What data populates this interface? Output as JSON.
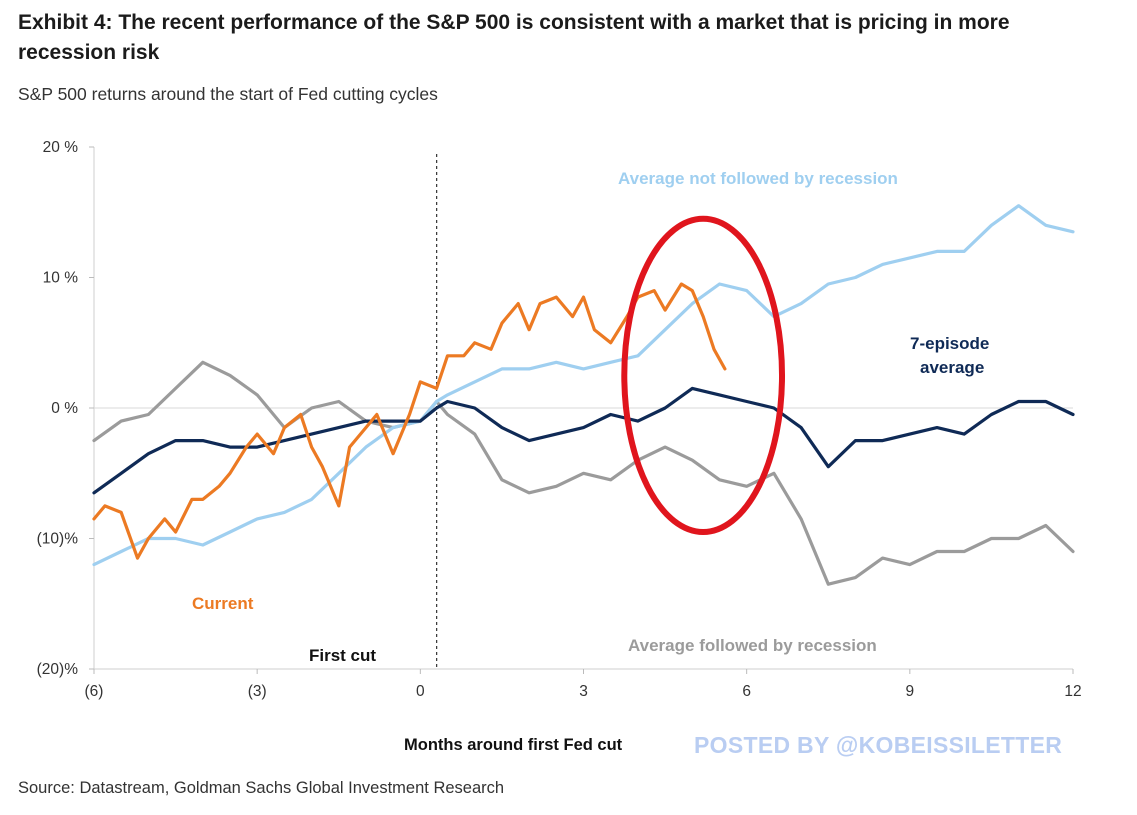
{
  "header": {
    "title": "Exhibit 4: The recent performance of the S&P 500 is consistent with a market that is pricing in more recession risk",
    "subtitle": "S&P 500 returns around the start of Fed cutting cycles"
  },
  "footer": {
    "source": "Source: Datastream, Goldman Sachs Global Investment Research",
    "watermark": "POSTED BY @KOBEISSILETTER"
  },
  "chart_data": {
    "type": "line",
    "title": "S&P 500 returns around the start of Fed cutting cycles",
    "xlabel": "Months  around first  Fed cut",
    "ylabel": "",
    "xlim": [
      -6,
      12
    ],
    "ylim": [
      -20,
      20
    ],
    "x_ticks": [
      -6,
      -3,
      0,
      3,
      6,
      9,
      12
    ],
    "x_tick_labels": [
      "(6)",
      "(3)",
      "0",
      "3",
      "6",
      "9",
      "12"
    ],
    "y_ticks": [
      20,
      10,
      0,
      -10,
      -20
    ],
    "y_tick_labels": [
      "20 %",
      "10 %",
      "0 %",
      "(10)%",
      "(20)%"
    ],
    "first_cut_x": 0.3,
    "first_cut_label": "First cut",
    "highlight": {
      "cx": 5.2,
      "cy": 2.5,
      "rx": 1.45,
      "ry": 12
    },
    "series": [
      {
        "name": "Average followed by recession",
        "color": "#9b9b9b",
        "x": [
          -6,
          -5.5,
          -5,
          -4.5,
          -4,
          -3.5,
          -3,
          -2.5,
          -2,
          -1.5,
          -1,
          -0.5,
          0,
          0.3,
          0.5,
          1,
          1.5,
          2,
          2.5,
          3,
          3.5,
          4,
          4.5,
          5,
          5.5,
          6,
          6.5,
          7,
          7.5,
          8,
          8.5,
          9,
          9.5,
          10,
          10.5,
          11,
          11.5,
          12
        ],
        "y": [
          -2.5,
          -1,
          -0.5,
          1.5,
          3.5,
          2.5,
          1,
          -1.5,
          0,
          0.5,
          -1,
          -1.5,
          -1,
          0.5,
          -0.5,
          -2,
          -5.5,
          -6.5,
          -6,
          -5,
          -5.5,
          -4,
          -3,
          -4,
          -5.5,
          -6,
          -5,
          -8.5,
          -13.5,
          -13,
          -11.5,
          -12,
          -11,
          -11,
          -10,
          -10,
          -9,
          -11
        ]
      },
      {
        "name": "Average not followed by recession",
        "color": "#9fcff0",
        "x": [
          -6,
          -5.5,
          -5,
          -4.5,
          -4,
          -3.5,
          -3,
          -2.5,
          -2,
          -1.5,
          -1,
          -0.5,
          0,
          0.3,
          0.5,
          1,
          1.5,
          2,
          2.5,
          3,
          3.5,
          4,
          4.5,
          5,
          5.5,
          6,
          6.5,
          7,
          7.5,
          8,
          8.5,
          9,
          9.5,
          10,
          10.5,
          11,
          11.5,
          12
        ],
        "y": [
          -12,
          -11,
          -10,
          -10,
          -10.5,
          -9.5,
          -8.5,
          -8,
          -7,
          -5,
          -3,
          -1.5,
          -1,
          0.5,
          1,
          2,
          3,
          3,
          3.5,
          3,
          3.5,
          4,
          6,
          8,
          9.5,
          9,
          7,
          8,
          9.5,
          10,
          11,
          11.5,
          12,
          12,
          14,
          15.5,
          14,
          13.5
        ]
      },
      {
        "name": "7-episode average",
        "color": "#0f2a56",
        "x": [
          -6,
          -5.5,
          -5,
          -4.5,
          -4,
          -3.5,
          -3,
          -2.5,
          -2,
          -1.5,
          -1,
          -0.5,
          0,
          0.3,
          0.5,
          1,
          1.5,
          2,
          2.5,
          3,
          3.5,
          4,
          4.5,
          5,
          5.5,
          6,
          6.5,
          7,
          7.5,
          8,
          8.5,
          9,
          9.5,
          10,
          10.5,
          11,
          11.5,
          12
        ],
        "y": [
          -6.5,
          -5,
          -3.5,
          -2.5,
          -2.5,
          -3,
          -3,
          -2.5,
          -2,
          -1.5,
          -1,
          -1,
          -1,
          0,
          0.5,
          0,
          -1.5,
          -2.5,
          -2,
          -1.5,
          -0.5,
          -1,
          0,
          1.5,
          1,
          0.5,
          0,
          -1.5,
          -4.5,
          -2.5,
          -2.5,
          -2,
          -1.5,
          -2,
          -0.5,
          0.5,
          0.5,
          -0.5
        ]
      },
      {
        "name": "Current",
        "color": "#ec7a23",
        "x": [
          -6,
          -5.8,
          -5.5,
          -5.2,
          -5,
          -4.7,
          -4.5,
          -4.2,
          -4,
          -3.7,
          -3.5,
          -3.2,
          -3,
          -2.7,
          -2.5,
          -2.2,
          -2,
          -1.8,
          -1.5,
          -1.3,
          -1,
          -0.8,
          -0.5,
          -0.2,
          0,
          0.3,
          0.5,
          0.8,
          1,
          1.3,
          1.5,
          1.8,
          2,
          2.2,
          2.5,
          2.8,
          3,
          3.2,
          3.5,
          3.8,
          4,
          4.3,
          4.5,
          4.8,
          5,
          5.2,
          5.4,
          5.6
        ],
        "y": [
          -8.5,
          -7.5,
          -8,
          -11.5,
          -10,
          -8.5,
          -9.5,
          -7,
          -7,
          -6,
          -5,
          -3,
          -2,
          -3.5,
          -1.5,
          -0.5,
          -3,
          -4.5,
          -7.5,
          -3,
          -1.5,
          -0.5,
          -3.5,
          -0.5,
          2,
          1.5,
          4,
          4,
          5,
          4.5,
          6.5,
          8,
          6,
          8,
          8.5,
          7,
          8.5,
          6,
          5,
          7,
          8.5,
          9,
          7.5,
          9.5,
          9,
          7,
          4.5,
          3
        ]
      }
    ],
    "labels": {
      "not_followed": "Average not followed by recession",
      "followed": "Average followed by recession",
      "seven_ep_1": "7-episode",
      "seven_ep_2": "average",
      "current": "Current"
    }
  }
}
